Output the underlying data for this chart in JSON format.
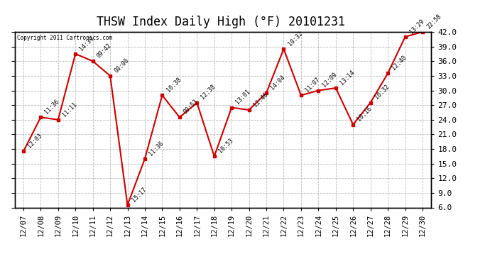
{
  "title": "THSW Index Daily High (°F) 20101231",
  "copyright": "Copyright 2011 Cartronics.com",
  "x_labels": [
    "12/07",
    "12/08",
    "12/09",
    "12/10",
    "12/11",
    "12/12",
    "12/13",
    "12/14",
    "12/15",
    "12/16",
    "12/17",
    "12/18",
    "12/19",
    "12/20",
    "12/21",
    "12/22",
    "12/23",
    "12/24",
    "12/25",
    "12/26",
    "12/27",
    "12/28",
    "12/29",
    "12/30"
  ],
  "y_values": [
    17.5,
    24.5,
    24.0,
    37.5,
    36.0,
    33.0,
    6.5,
    16.0,
    29.0,
    24.5,
    27.5,
    16.5,
    26.5,
    26.0,
    29.5,
    38.5,
    29.0,
    30.0,
    30.5,
    23.0,
    27.5,
    33.5,
    41.0,
    42.0
  ],
  "annotations": [
    "12:03",
    "11:36",
    "11:11",
    "14:39",
    "09:42",
    "00:00",
    "15:17",
    "11:36",
    "10:38",
    "09:53",
    "12:38",
    "10:53",
    "13:01",
    "12:46",
    "14:04",
    "10:32",
    "11:07",
    "12:09",
    "13:14",
    "10:16",
    "10:32",
    "12:40",
    "13:29",
    "22:58"
  ],
  "ylim": [
    6.0,
    42.0
  ],
  "yticks": [
    6.0,
    9.0,
    12.0,
    15.0,
    18.0,
    21.0,
    24.0,
    27.0,
    30.0,
    33.0,
    36.0,
    39.0,
    42.0
  ],
  "line_color": "#cc0000",
  "marker_color": "#cc0000",
  "bg_color": "#ffffff",
  "grid_color": "#bbbbbb",
  "plot_bg_color": "#ffffff",
  "title_fontsize": 12,
  "annot_fontsize": 6.0,
  "tick_fontsize": 7.5
}
